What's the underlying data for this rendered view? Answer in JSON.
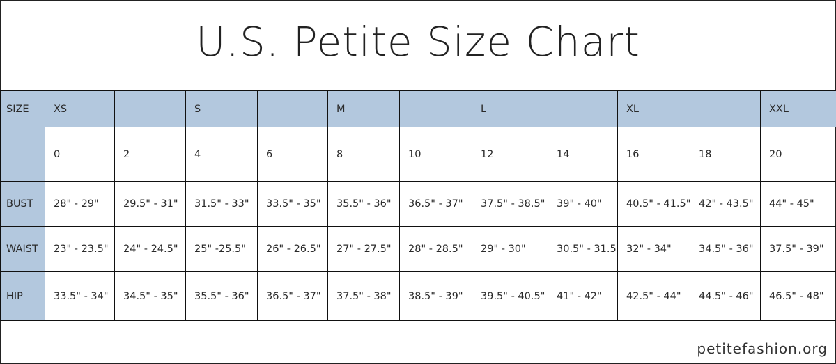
{
  "title": "U.S. Petite Size Chart",
  "size_row": {
    "label": "SIZE",
    "cells": [
      "XS",
      "",
      "S",
      "",
      "M",
      "",
      "L",
      "",
      "XL",
      "",
      "XXL"
    ]
  },
  "number_row": {
    "label": "",
    "cells": [
      "0",
      "2",
      "4",
      "6",
      "8",
      "10",
      "12",
      "14",
      "16",
      "18",
      "20"
    ]
  },
  "measurements": [
    {
      "label": "BUST",
      "cells": [
        "28\" - 29\"",
        "29.5\" - 31\"",
        "31.5\" - 33\"",
        "33.5\" - 35\"",
        "35.5\" - 36\"",
        "36.5\" - 37\"",
        "37.5\" - 38.5\"",
        "39\" - 40\"",
        "40.5\" - 41.5\"",
        "42\" - 43.5\"",
        "44\" - 45\""
      ]
    },
    {
      "label": "WAIST",
      "cells": [
        "23\" - 23.5\"",
        "24\" - 24.5\"",
        "25\" -25.5\"",
        "26\" - 26.5\"",
        "27\" - 27.5\"",
        "28\" - 28.5\"",
        "29\" - 30\"",
        "30.5\" - 31.5\"",
        "32\" - 34\"",
        "34.5\" - 36\"",
        "37.5\" - 39\""
      ]
    },
    {
      "label": "HIP",
      "cells": [
        "33.5\" - 34\"",
        "34.5\" - 35\"",
        "35.5\" - 36\"",
        "36.5\" - 37\"",
        "37.5\" - 38\"",
        "38.5\" - 39\"",
        "39.5\" - 40.5\"",
        "41\" - 42\"",
        "42.5\" - 44\"",
        "44.5\" - 46\"",
        "46.5\" - 48\""
      ]
    }
  ],
  "footer": "petitefashion.org",
  "colors": {
    "header_fill": "#b3c8de",
    "border": "#111111"
  }
}
